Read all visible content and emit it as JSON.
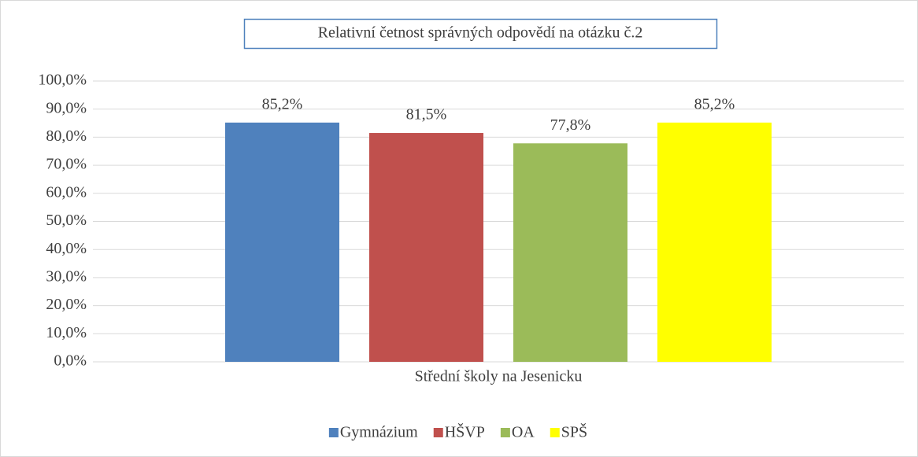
{
  "chart_data": {
    "type": "bar",
    "title": "Relativní četnost správných odpovědí na otázku č.2",
    "categories": [
      "Střední školy na Jesenicku"
    ],
    "series": [
      {
        "name": "Gymnázium",
        "color": "#4f81bd",
        "values": [
          85.2
        ],
        "value_labels": [
          "85,2%"
        ]
      },
      {
        "name": "HŠVP",
        "color": "#c0504d",
        "values": [
          81.5
        ],
        "value_labels": [
          "81,5%"
        ]
      },
      {
        "name": "OA",
        "color": "#9bbb59",
        "values": [
          77.8
        ],
        "value_labels": [
          "77,8%"
        ]
      },
      {
        "name": "SPŠ",
        "color": "#ffff00",
        "values": [
          85.2
        ],
        "value_labels": [
          "85,2%"
        ]
      }
    ],
    "ylim": [
      0,
      100
    ],
    "yticks": [
      {
        "value": 0,
        "label": "0,0%"
      },
      {
        "value": 10,
        "label": "10,0%"
      },
      {
        "value": 20,
        "label": "20,0%"
      },
      {
        "value": 30,
        "label": "30,0%"
      },
      {
        "value": 40,
        "label": "40,0%"
      },
      {
        "value": 50,
        "label": "50,0%"
      },
      {
        "value": 60,
        "label": "60,0%"
      },
      {
        "value": 70,
        "label": "70,0%"
      },
      {
        "value": 80,
        "label": "80,0%"
      },
      {
        "value": 90,
        "label": "90,0%"
      },
      {
        "value": 100,
        "label": "100,0%"
      }
    ],
    "grid": true,
    "legend": "bottom"
  }
}
